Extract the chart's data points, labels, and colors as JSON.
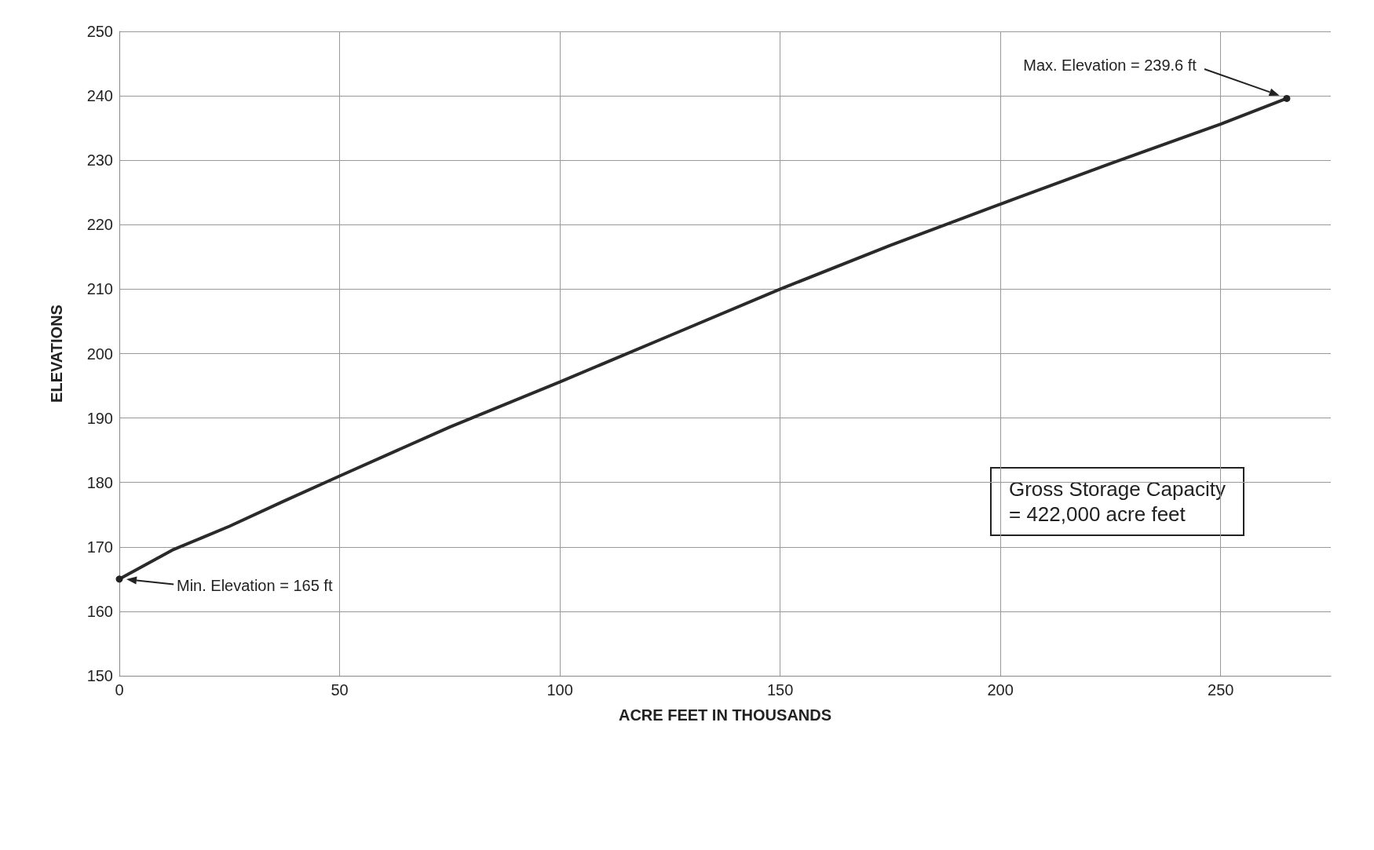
{
  "chart_data": {
    "type": "line",
    "xlabel": "ACRE FEET IN THOUSANDS",
    "ylabel": "ELEVATIONS",
    "x": [
      0,
      12,
      25,
      37,
      50,
      75,
      100,
      125,
      150,
      175,
      200,
      225,
      250,
      265
    ],
    "series": [
      {
        "color": "#2a2a2a",
        "values": [
          165,
          169.5,
          173.2,
          177,
          181,
          188.6,
          195.6,
          202.8,
          210,
          216.8,
          223.2,
          229.5,
          235.6,
          239.6
        ]
      }
    ],
    "xlim": [
      0,
      275
    ],
    "xticks": [
      0,
      50,
      100,
      150,
      200,
      250
    ],
    "ylim": [
      150,
      250
    ],
    "yticks": [
      150,
      160,
      170,
      180,
      190,
      200,
      210,
      220,
      230,
      240,
      250
    ],
    "grid": true,
    "marker": "none",
    "line_style": "solid",
    "annotations": [
      "Max. Elevation = 239.6 ft",
      "Min. Elevation = 165 ft",
      "Gross Storage Capacity\n= 422,000 acre feet"
    ]
  }
}
